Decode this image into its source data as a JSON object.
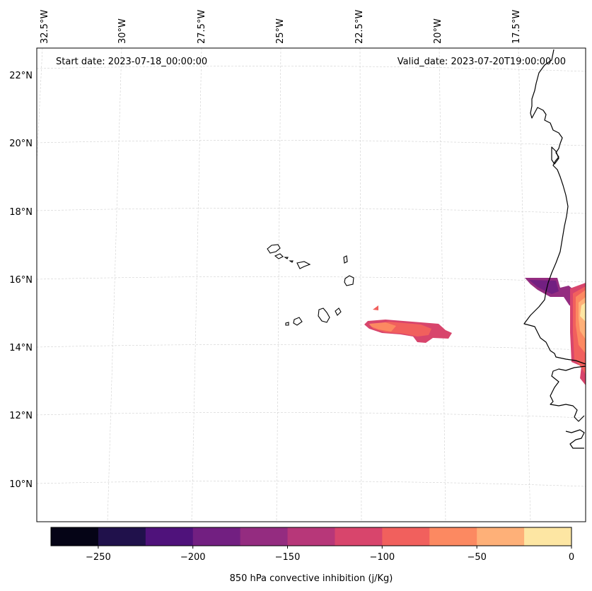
{
  "header": {
    "start_date": "Start date: 2023-07-18_00:00:00",
    "valid_date": "Valid_date: 2023-07-20T19:00:00.00"
  },
  "axes": {
    "lon_labels": [
      "32.5°W",
      "30°W",
      "27.5°W",
      "25°W",
      "22.5°W",
      "20°W",
      "17.5°W"
    ],
    "lat_labels": [
      "22°N",
      "20°N",
      "18°N",
      "16°N",
      "14°N",
      "12°N",
      "10°N"
    ]
  },
  "colorbar": {
    "label": "850 hPa convective inhibition (j/Kg)",
    "ticks": [
      "−250",
      "−200",
      "−150",
      "−100",
      "−50",
      "0"
    ],
    "range": [
      -275,
      0
    ],
    "colors": [
      "#050416",
      "#20114b",
      "#4f127b",
      "#721f81",
      "#942c80",
      "#b73779",
      "#d8456c",
      "#f1605d",
      "#fc8961",
      "#feb078",
      "#fde6a3"
    ]
  }
}
